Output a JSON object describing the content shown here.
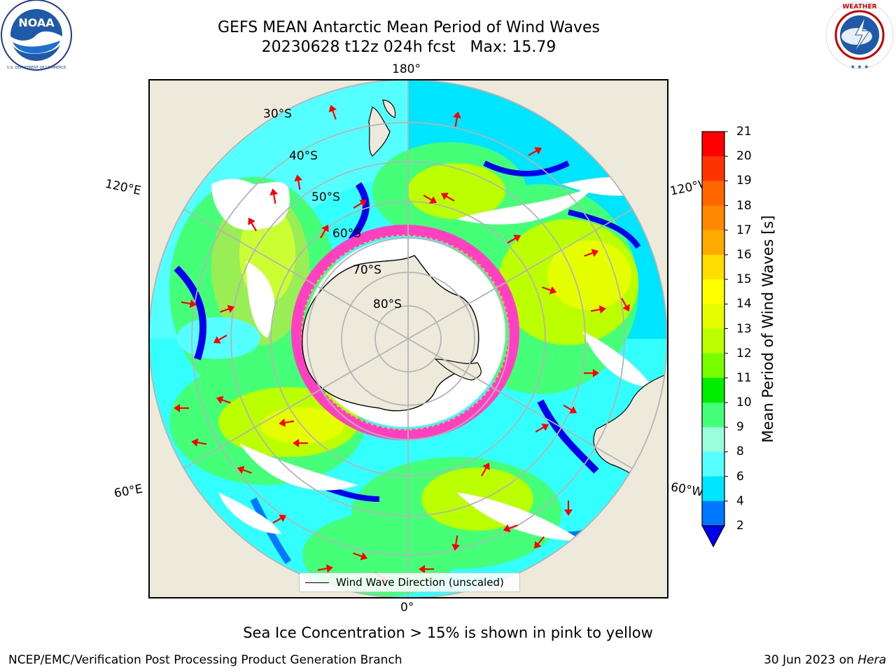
{
  "header": {
    "title_line1": "GEFS MEAN Antarctic Mean Period of Wind Waves",
    "title_line2": "20230628 t12z 024h fcst   Max: 15.79"
  },
  "logos": {
    "left": {
      "name": "NOAA",
      "ring_text": "NATIONAL OCEANIC AND ATMOSPHERIC ADMINISTRATION · U.S. DEPARTMENT OF COMMERCE"
    },
    "right": {
      "name": "NATIONAL WEATHER SERVICE"
    }
  },
  "map": {
    "longitude_labels": {
      "top": "180°",
      "bottom": "0°",
      "upper_left": "120°E",
      "upper_right": "120°W",
      "lower_left": "60°E",
      "lower_right": "60°W"
    },
    "latitude_labels": [
      "30°S",
      "40°S",
      "50°S",
      "60°S",
      "70°S",
      "80°S"
    ],
    "legend_label": "Wind Wave Direction (unscaled)",
    "colors": {
      "land": "#eeeadb",
      "arrow": "#ff0000",
      "grid": "#b4b4b4",
      "sea_ice_low": "#ff40c0",
      "sea_ice_high": "#ffc040"
    }
  },
  "colorbar": {
    "label": "Mean Period of Wind Waves [s]",
    "ticks": [
      "21",
      "20",
      "19",
      "18",
      "17",
      "16",
      "15",
      "14",
      "13",
      "12",
      "11",
      "10",
      "9",
      "8",
      "6",
      "4",
      "2"
    ],
    "levels": [
      {
        "from": 20,
        "to": 21,
        "color": "#ff0000"
      },
      {
        "from": 19,
        "to": 20,
        "color": "#ff3300"
      },
      {
        "from": 18,
        "to": 19,
        "color": "#ff6600"
      },
      {
        "from": 17,
        "to": 18,
        "color": "#ff8800"
      },
      {
        "from": 16,
        "to": 17,
        "color": "#ffaa00"
      },
      {
        "from": 15,
        "to": 16,
        "color": "#ffdd00"
      },
      {
        "from": 14,
        "to": 15,
        "color": "#ffff00"
      },
      {
        "from": 13,
        "to": 14,
        "color": "#e5ff00"
      },
      {
        "from": 12,
        "to": 13,
        "color": "#bbff00"
      },
      {
        "from": 11,
        "to": 12,
        "color": "#77ff00"
      },
      {
        "from": 10,
        "to": 11,
        "color": "#00ee00"
      },
      {
        "from": 9,
        "to": 10,
        "color": "#44ff77"
      },
      {
        "from": 8,
        "to": 9,
        "color": "#99ffdd"
      },
      {
        "from": 6,
        "to": 8,
        "color": "#55ffff"
      },
      {
        "from": 4,
        "to": 6,
        "color": "#00e5ff"
      },
      {
        "from": 2,
        "to": 4,
        "color": "#0077ff"
      },
      {
        "from": 0,
        "to": 2,
        "color": "#0000ee"
      }
    ]
  },
  "caption": "Sea Ice Concentration > 15% is shown in pink to yellow",
  "footer": {
    "left": "NCEP/EMC/Verification Post Processing Product Generation Branch",
    "right_prefix": "30 Jun 2023 on ",
    "right_host": "Hera"
  }
}
